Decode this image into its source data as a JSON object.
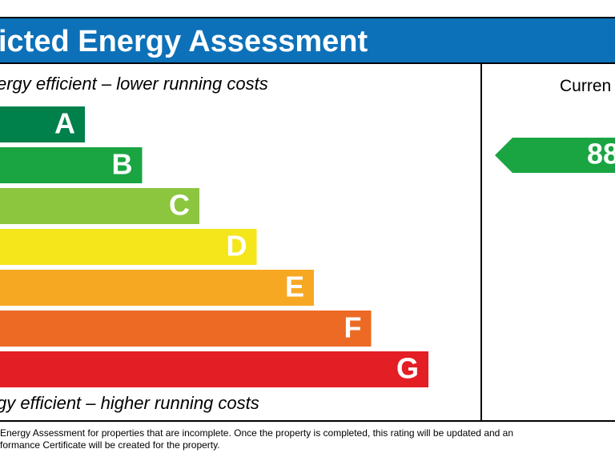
{
  "header": {
    "title": "icted Energy Assessment"
  },
  "scale": {
    "top_label": "ergy efficient – lower running costs",
    "bottom_label": "gy efficient – higher running costs",
    "bands": [
      {
        "letter": "A",
        "color": "#00804a"
      },
      {
        "letter": "B",
        "color": "#1aa542"
      },
      {
        "letter": "C",
        "color": "#8cc63f"
      },
      {
        "letter": "D",
        "color": "#f4e61b"
      },
      {
        "letter": "E",
        "color": "#f7a823"
      },
      {
        "letter": "F",
        "color": "#ec6a24"
      },
      {
        "letter": "G",
        "color": "#e31e25"
      }
    ]
  },
  "current": {
    "label": "Curren",
    "value": 88,
    "color": "#1aa542"
  },
  "footer": {
    "lines": [
      " Energy Assessment for properties that are incomplete. Once the property is completed, this rating will be updated and an",
      "formance Certificate will be created for the property."
    ]
  }
}
